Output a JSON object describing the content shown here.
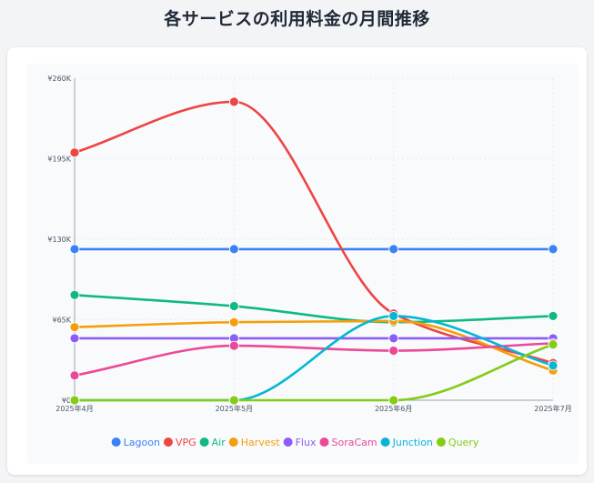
{
  "title": "各サービスの利用料金の月間推移",
  "chart_data": {
    "type": "line",
    "categories": [
      "2025年4月",
      "2025年5月",
      "2025年6月",
      "2025年7月"
    ],
    "y_ticks": [
      "¥0",
      "¥65K",
      "¥130K",
      "¥195K",
      "¥260K"
    ],
    "ylim": [
      0,
      260000
    ],
    "grid": true,
    "legend_position": "bottom",
    "series": [
      {
        "name": "Lagoon",
        "color": "#3b82f6",
        "values": [
          122000,
          122000,
          122000,
          122000
        ]
      },
      {
        "name": "VPG",
        "color": "#ef4444",
        "values": [
          200000,
          241000,
          70000,
          30000
        ]
      },
      {
        "name": "Air",
        "color": "#10b981",
        "values": [
          85000,
          76000,
          63000,
          68000
        ]
      },
      {
        "name": "Harvest",
        "color": "#f59e0b",
        "values": [
          59000,
          63000,
          64000,
          24000
        ]
      },
      {
        "name": "Flux",
        "color": "#8b5cf6",
        "values": [
          50000,
          50000,
          50000,
          50000
        ]
      },
      {
        "name": "SoraCam",
        "color": "#ec4899",
        "values": [
          20000,
          44000,
          40000,
          46000
        ]
      },
      {
        "name": "Junction",
        "color": "#06b6d4",
        "values": [
          0,
          0,
          68000,
          28000
        ]
      },
      {
        "name": "Query",
        "color": "#84cc16",
        "values": [
          0,
          0,
          0,
          45000
        ]
      }
    ]
  }
}
